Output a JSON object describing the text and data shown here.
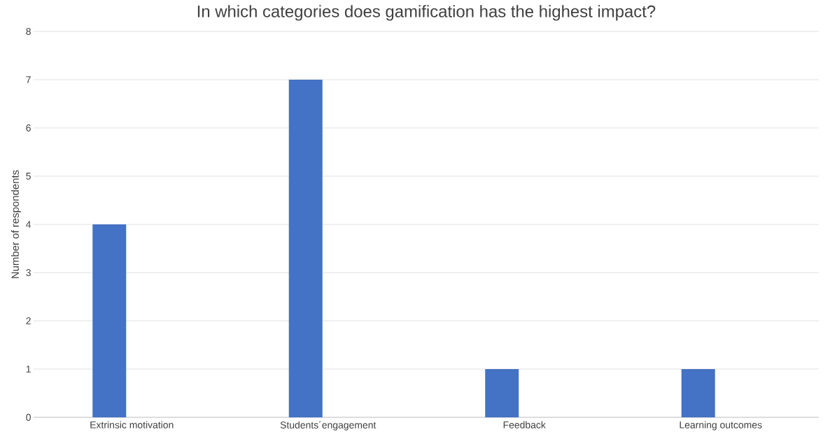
{
  "chart_data": {
    "type": "bar",
    "title": "In which categories does gamification has the highest impact?",
    "ylabel": "Number of respondents",
    "categories": [
      "Extrinsic motivation",
      "Students´engagement",
      "Feedback",
      "Learning outcomes"
    ],
    "values": [
      4,
      7,
      1,
      1
    ],
    "color": "#4472c4",
    "ylim": [
      0,
      8
    ],
    "yticks": [
      0,
      1,
      2,
      3,
      4,
      5,
      6,
      7,
      8
    ],
    "grid": "y"
  }
}
